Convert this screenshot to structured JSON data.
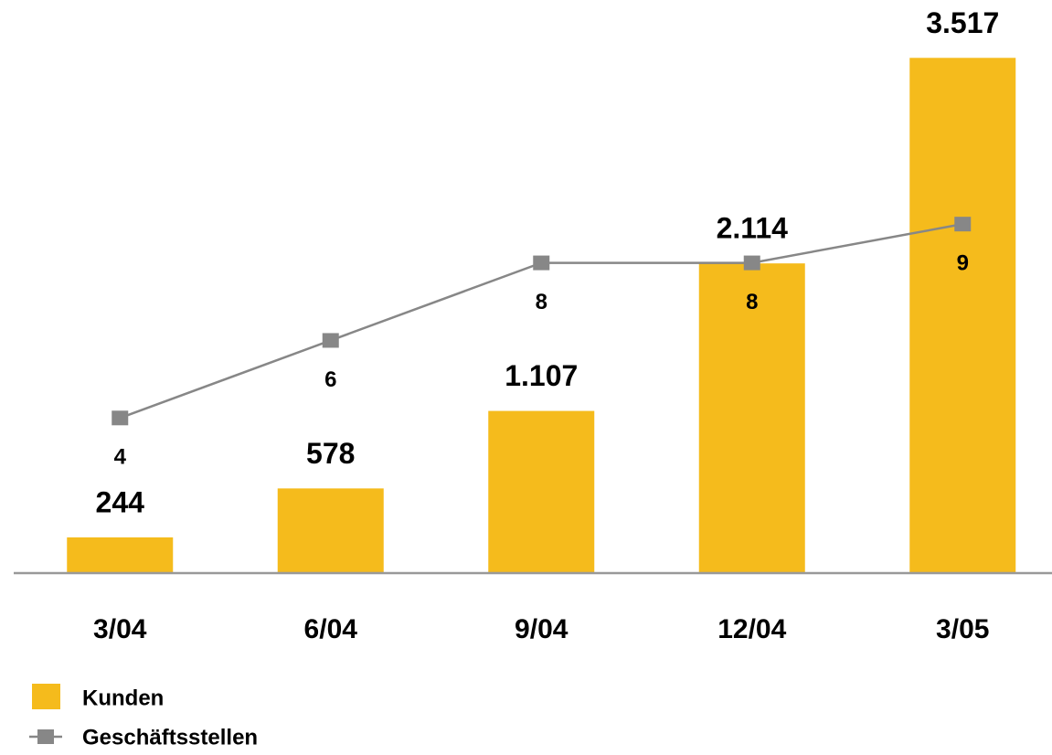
{
  "chart_data": {
    "type": "bar",
    "categories": [
      "3/04",
      "6/04",
      "9/04",
      "12/04",
      "3/05"
    ],
    "series": [
      {
        "name": "Kunden",
        "type": "bar",
        "color": "#f5bb1c",
        "values": [
          244,
          578,
          1107,
          2114,
          3517
        ],
        "value_labels": [
          "244",
          "578",
          "1.107",
          "2.114",
          "3.517"
        ]
      },
      {
        "name": "Geschäftsstellen",
        "type": "line",
        "axis": "y2",
        "color": "#878787",
        "values": [
          4,
          6,
          8,
          8,
          9
        ]
      }
    ],
    "ylim": [
      0,
      3600
    ],
    "y2lim": [
      0,
      13.6
    ],
    "grid": false,
    "legend": "bottom-left"
  }
}
